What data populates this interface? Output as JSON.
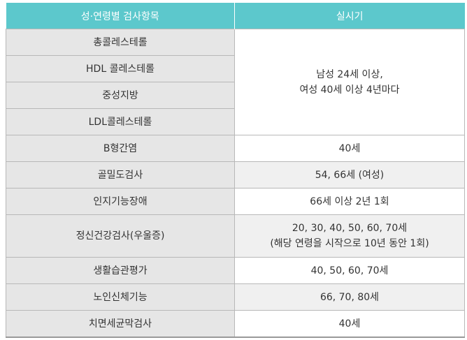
{
  "header": {
    "col1": "성·연령별 검사항목",
    "col2": "실시기"
  },
  "rows": [
    {
      "item": "총콜레스테롤"
    },
    {
      "item": "HDL 콜레스테롤"
    },
    {
      "item": "중성지방"
    },
    {
      "item": "LDL콜레스테롤"
    },
    {
      "item": "B형간염",
      "schedule": "40세"
    },
    {
      "item": "골밀도검사",
      "schedule": "54, 66세 (여성)"
    },
    {
      "item": "인지기능장애",
      "schedule": "66세 이상 2년 1회"
    },
    {
      "item": "정신건강검사(우울증)",
      "schedule_line1": "20, 30, 40, 50, 60, 70세",
      "schedule_line2": "(해당 연령을 시작으로 10년 동안 1회)"
    },
    {
      "item": "생활습관평가",
      "schedule": "40, 50, 60, 70세"
    },
    {
      "item": "노인신체기능",
      "schedule": "66, 70, 80세"
    },
    {
      "item": "치면세균막검사",
      "schedule": "40세"
    }
  ],
  "merged": {
    "line1": "남성 24세 이상,",
    "line2": "여성 40세 이상 4년마다"
  }
}
